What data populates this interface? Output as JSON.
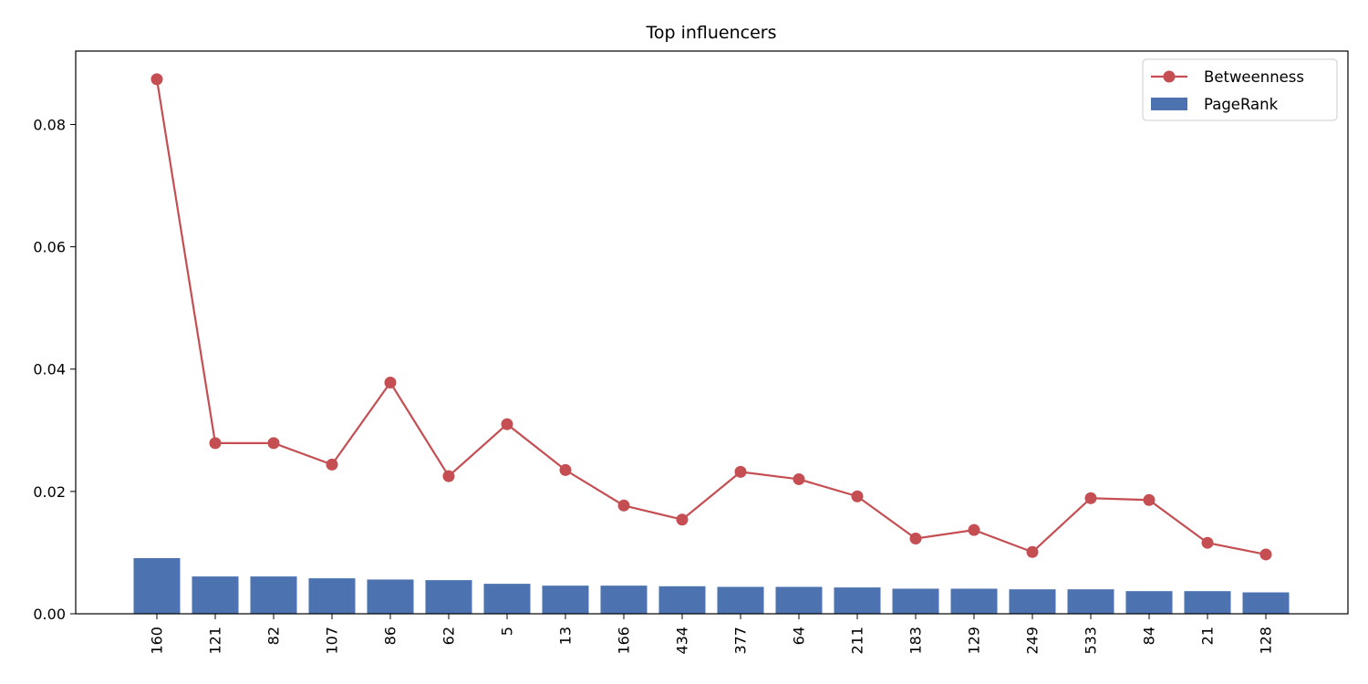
{
  "chart_data": {
    "type": "bar",
    "title": "Top influencers",
    "xlabel": "",
    "ylabel": "",
    "categories": [
      "160",
      "121",
      "82",
      "107",
      "86",
      "62",
      "5",
      "13",
      "166",
      "434",
      "377",
      "64",
      "211",
      "183",
      "129",
      "249",
      "533",
      "84",
      "21",
      "128"
    ],
    "ylim": [
      0,
      0.092
    ],
    "yticks": [
      0.0,
      0.02,
      0.04,
      0.06,
      0.08
    ],
    "ytick_labels": [
      "0.00",
      "0.02",
      "0.04",
      "0.06",
      "0.08"
    ],
    "grid": false,
    "legend_position": "top-right",
    "series": [
      {
        "name": "Betweenness",
        "kind": "line",
        "marker": "circle",
        "color": "#c44e52",
        "values": [
          0.0874,
          0.0279,
          0.0279,
          0.0244,
          0.0378,
          0.0225,
          0.031,
          0.0235,
          0.0177,
          0.0154,
          0.0232,
          0.022,
          0.0192,
          0.0123,
          0.0137,
          0.0101,
          0.0189,
          0.0186,
          0.0116,
          0.0097
        ]
      },
      {
        "name": "PageRank",
        "kind": "bar",
        "color": "#4c72b0",
        "values": [
          0.0091,
          0.0061,
          0.0061,
          0.0058,
          0.0056,
          0.0055,
          0.0049,
          0.0046,
          0.0046,
          0.0045,
          0.0044,
          0.0044,
          0.0043,
          0.0041,
          0.0041,
          0.004,
          0.004,
          0.0037,
          0.0037,
          0.0035
        ]
      }
    ]
  }
}
